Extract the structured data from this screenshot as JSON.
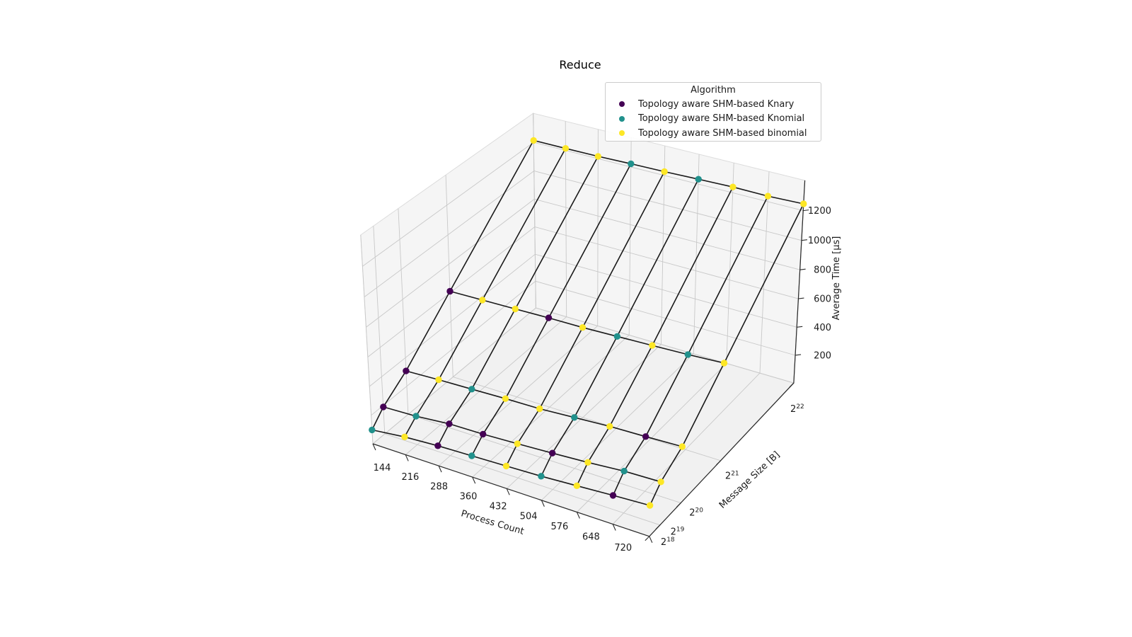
{
  "chart_data": {
    "type": "scatter",
    "projection": "3d",
    "title": "Reduce",
    "xlabel": "Process Count",
    "ylabel": "Message Size [B]",
    "zlabel": "Average Time [µs]",
    "x_ticks": [
      144,
      216,
      288,
      360,
      432,
      504,
      576,
      648,
      720
    ],
    "y_ticks": [
      {
        "base": 2,
        "exp": 18
      },
      {
        "base": 2,
        "exp": 19
      },
      {
        "base": 2,
        "exp": 20
      },
      {
        "base": 2,
        "exp": 21
      },
      {
        "base": 2,
        "exp": 22
      }
    ],
    "y_scale": "linear-bytes",
    "z_ticks": [
      200,
      400,
      600,
      800,
      1000,
      1200
    ],
    "zlim": [
      0,
      1400
    ],
    "grid": true,
    "legend": {
      "title": "Algorithm",
      "position": "upper right"
    },
    "series": [
      {
        "name": "Topology aware SHM-based Knary",
        "color": "#440154"
      },
      {
        "name": "Topology aware SHM-based Knomial",
        "color": "#21918c"
      },
      {
        "name": "Topology aware SHM-based binomial",
        "color": "#fde725"
      }
    ],
    "surface": {
      "process_counts": [
        144,
        216,
        288,
        360,
        432,
        504,
        576,
        648,
        720
      ],
      "rows": [
        {
          "message_size_exp": 18,
          "avg_time_us": [
            98,
            125,
            140,
            148,
            156,
            165,
            180,
            195,
            209
          ],
          "best_algorithm_index": [
            1,
            2,
            0,
            1,
            2,
            1,
            2,
            0,
            2
          ]
        },
        {
          "message_size_exp": 19,
          "avg_time_us": [
            190,
            200,
            222,
            226,
            237,
            250,
            265,
            285,
            292
          ],
          "best_algorithm_index": [
            0,
            1,
            0,
            0,
            2,
            0,
            2,
            1,
            2
          ]
        },
        {
          "message_size_exp": 20,
          "avg_time_us": [
            308,
            318,
            325,
            333,
            337,
            352,
            367,
            374,
            383
          ],
          "best_algorithm_index": [
            0,
            2,
            1,
            2,
            2,
            1,
            2,
            0,
            2
          ]
        },
        {
          "message_size_exp": 21,
          "avg_time_us": [
            612,
            617,
            622,
            628,
            630,
            638,
            646,
            655,
            668
          ],
          "best_algorithm_index": [
            0,
            2,
            2,
            0,
            2,
            1,
            2,
            1,
            2
          ]
        },
        {
          "message_size_exp": 22,
          "avg_time_us": [
            1213,
            1214,
            1216,
            1222,
            1226,
            1233,
            1239,
            1237,
            1245
          ],
          "best_algorithm_index": [
            2,
            2,
            2,
            1,
            2,
            1,
            2,
            2,
            2
          ]
        }
      ]
    },
    "style": {
      "pane_floor": "#f1f1f1",
      "pane_wall": "#f5f5f5",
      "pane_edge": "#dcdcdc",
      "grid_color": "#c8c8c8",
      "axis_line": "#2b2b2b",
      "wireframe": "#1a1a1a",
      "background": "#ffffff"
    }
  }
}
